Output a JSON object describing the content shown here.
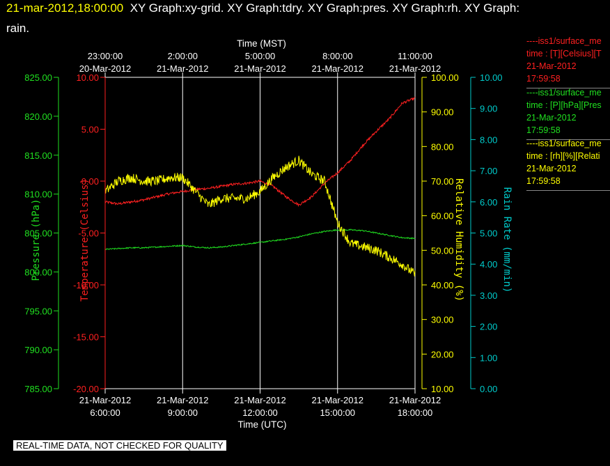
{
  "header": {
    "timestamp": "21-mar-2012,18:00:00",
    "graphs_line1": "XY Graph:xy-grid.  XY Graph:tdry.  XY Graph:pres.  XY Graph:rh.  XY Graph:",
    "graphs_line2": "rain."
  },
  "legend": [
    {
      "line1": "----iss1/surface_me",
      "line2": "time : [T][Celsius][T",
      "date": "21-Mar-2012",
      "time": "17:59:58",
      "color": "#ff2020"
    },
    {
      "line1": "----iss1/surface_me",
      "line2": "time : [P][hPa][Pres",
      "date": "21-Mar-2012",
      "time": "17:59:58",
      "color": "#20e020"
    },
    {
      "line1": "----iss1/surface_me",
      "line2": "time : [rh][%][Relati",
      "date": "21-Mar-2012",
      "time": "17:59:58",
      "color": "#ffff00"
    }
  ],
  "disclaimer": "REAL-TIME DATA, NOT CHECKED FOR QUALITY",
  "chart_data": {
    "type": "line",
    "x_range_utc_hours": [
      6,
      18
    ],
    "top_axis": {
      "title": "Time (MST)",
      "ticks": [
        {
          "utc_hour": 6,
          "date": "20-Mar-2012",
          "time": "23:00:00"
        },
        {
          "utc_hour": 9,
          "date": "21-Mar-2012",
          "time": "2:00:00"
        },
        {
          "utc_hour": 12,
          "date": "21-Mar-2012",
          "time": "5:00:00"
        },
        {
          "utc_hour": 15,
          "date": "21-Mar-2012",
          "time": "8:00:00"
        },
        {
          "utc_hour": 18,
          "date": "21-Mar-2012",
          "time": "11:00:00"
        }
      ]
    },
    "bottom_axis": {
      "title": "Time (UTC)",
      "ticks": [
        {
          "utc_hour": 6,
          "date": "21-Mar-2012",
          "time": "6:00:00"
        },
        {
          "utc_hour": 9,
          "date": "21-Mar-2012",
          "time": "9:00:00"
        },
        {
          "utc_hour": 12,
          "date": "21-Mar-2012",
          "time": "12:00:00"
        },
        {
          "utc_hour": 15,
          "date": "21-Mar-2012",
          "time": "15:00:00"
        },
        {
          "utc_hour": 18,
          "date": "21-Mar-2012",
          "time": "18:00:00"
        }
      ]
    },
    "y_axes": [
      {
        "key": "pres",
        "label": "Pressure (hPa)",
        "range": [
          785,
          825
        ],
        "step": 5,
        "decimals": 2,
        "color": "#20e020"
      },
      {
        "key": "temp",
        "label": "Temperature (Celsius)",
        "range": [
          -20,
          10
        ],
        "step": 5,
        "decimals": 2,
        "color": "#ff2020"
      },
      {
        "key": "rh",
        "label": "Relative Humidity (%)",
        "range": [
          10,
          100
        ],
        "step": 10,
        "decimals": 2,
        "color": "#ffff00"
      },
      {
        "key": "rain",
        "label": "Rain Rate (mm/min)",
        "range": [
          0,
          10
        ],
        "step": 1,
        "decimals": 2,
        "color": "#00cccc"
      }
    ],
    "series": [
      {
        "name": "Temperature",
        "axis": "temp",
        "color": "#ff2020",
        "x": [
          6.0,
          6.5,
          7.0,
          7.5,
          8.0,
          8.5,
          9.0,
          9.5,
          10.0,
          10.5,
          11.0,
          11.5,
          12.0,
          12.5,
          13.0,
          13.5,
          14.0,
          14.5,
          15.0,
          15.5,
          16.0,
          16.5,
          17.0,
          17.5,
          18.0
        ],
        "y": [
          -2.0,
          -2.2,
          -2.0,
          -1.8,
          -1.5,
          -1.2,
          -1.0,
          -0.8,
          -0.7,
          -0.5,
          -0.3,
          -0.2,
          0.0,
          -0.5,
          -1.5,
          -2.3,
          -1.5,
          -0.2,
          0.8,
          2.0,
          3.5,
          4.8,
          6.0,
          7.5,
          8.0
        ]
      },
      {
        "name": "Pressure",
        "axis": "pres",
        "color": "#20e020",
        "x": [
          6.0,
          6.5,
          7.0,
          7.5,
          8.0,
          8.5,
          9.0,
          9.5,
          10.0,
          10.5,
          11.0,
          11.5,
          12.0,
          12.5,
          13.0,
          13.5,
          14.0,
          14.5,
          15.0,
          15.5,
          16.0,
          16.5,
          17.0,
          17.5,
          18.0
        ],
        "y": [
          802.9,
          803.0,
          803.1,
          803.1,
          803.2,
          803.3,
          803.4,
          803.2,
          803.1,
          803.2,
          803.4,
          803.6,
          803.8,
          804.0,
          804.2,
          804.5,
          804.9,
          805.2,
          805.4,
          805.4,
          805.3,
          805.0,
          804.7,
          804.4,
          804.3
        ]
      },
      {
        "name": "Relative Humidity",
        "axis": "rh",
        "color": "#ffff00",
        "x": [
          6.0,
          6.5,
          7.0,
          7.5,
          8.0,
          8.5,
          9.0,
          9.5,
          10.0,
          10.5,
          11.0,
          11.5,
          12.0,
          12.5,
          13.0,
          13.5,
          14.0,
          14.5,
          15.0,
          15.5,
          16.0,
          16.5,
          17.0,
          17.5,
          18.0
        ],
        "y": [
          67,
          70,
          71,
          70,
          70,
          71,
          71,
          67,
          63,
          65,
          65,
          65,
          67,
          71,
          74,
          76,
          72,
          70,
          58,
          52,
          51,
          50,
          48,
          46,
          43
        ]
      }
    ]
  }
}
